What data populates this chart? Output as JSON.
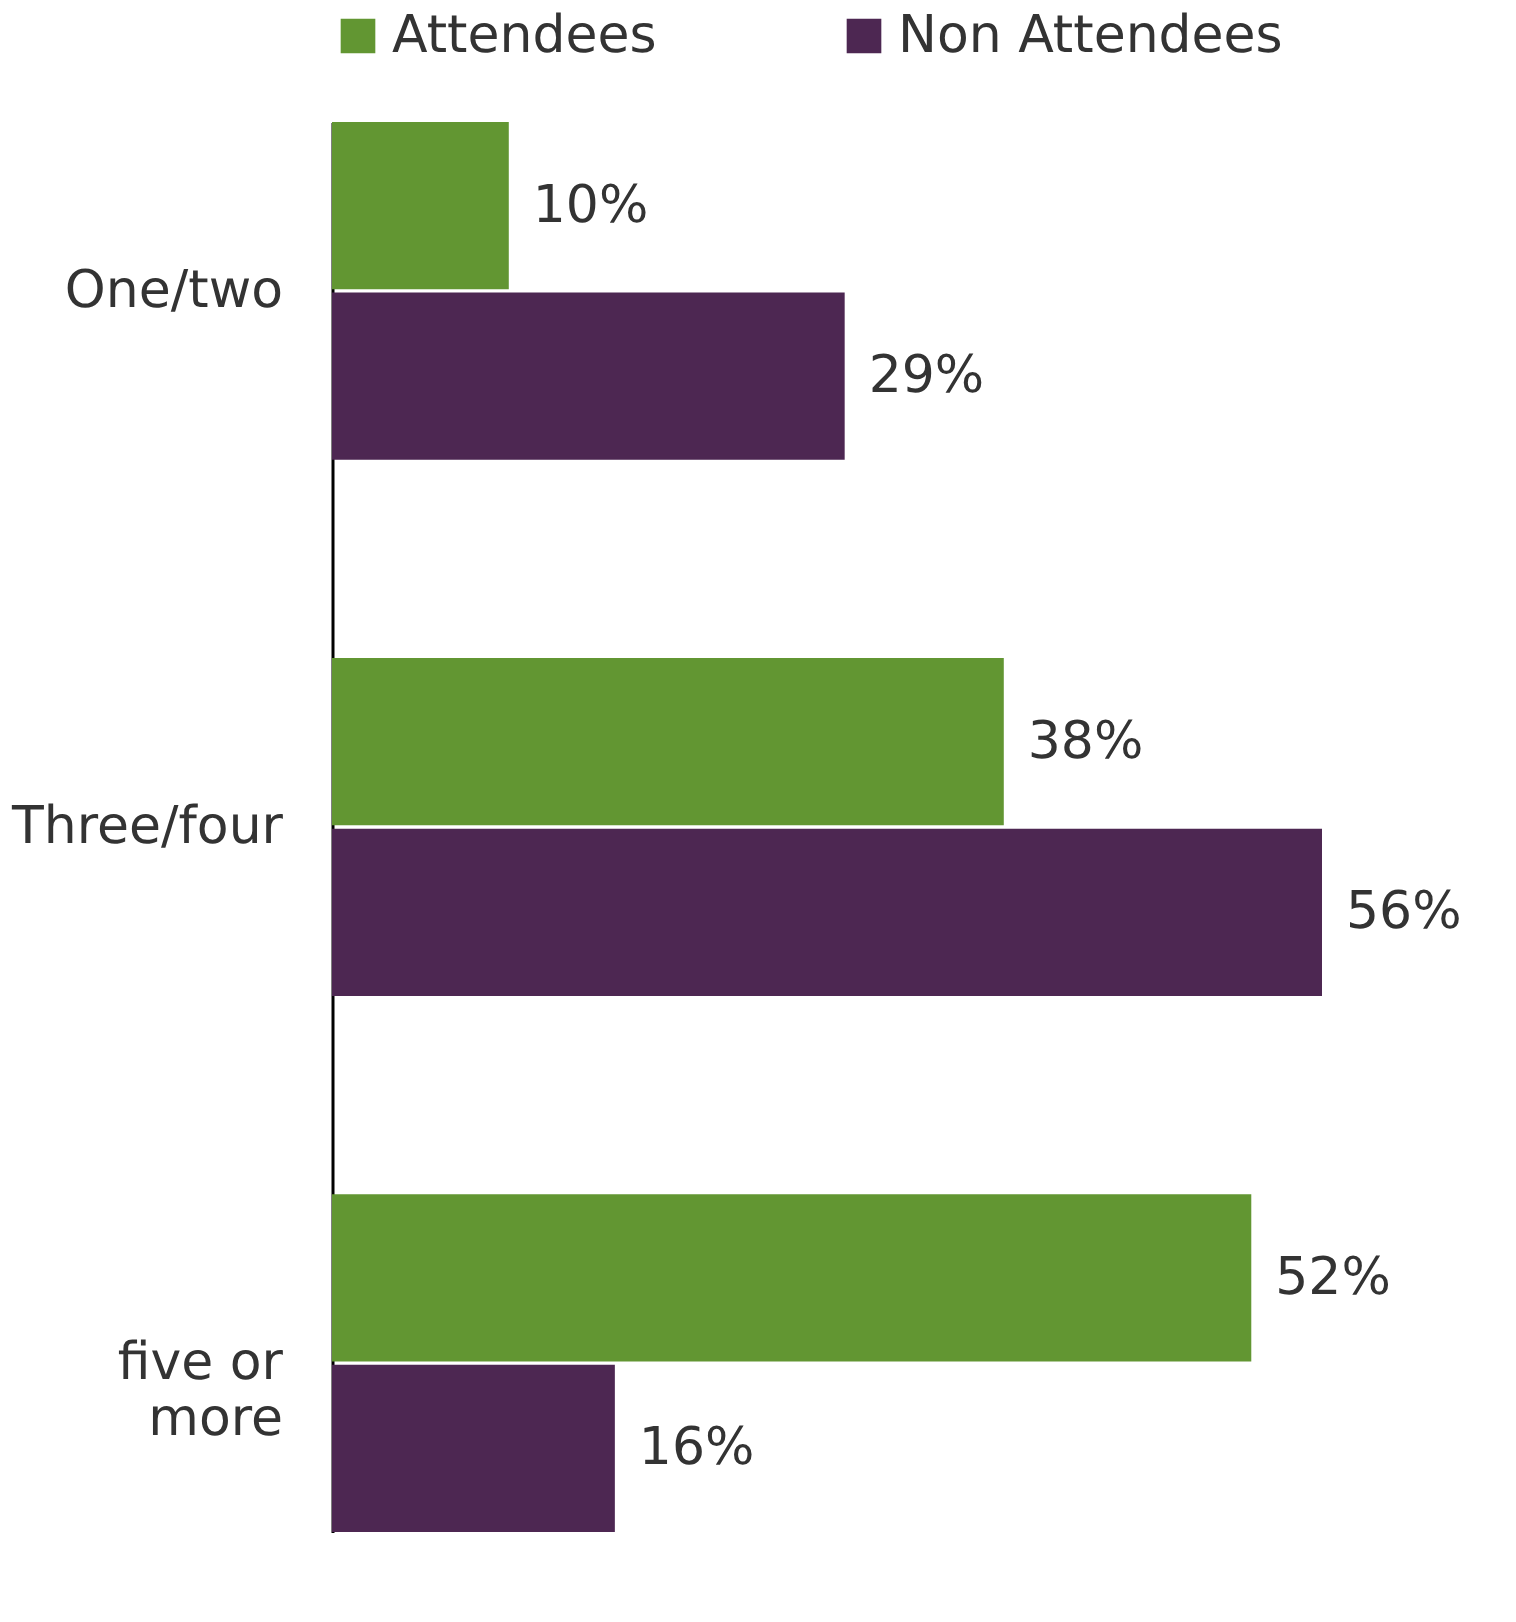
{
  "chart_data": {
    "type": "bar",
    "orientation": "horizontal",
    "categories": [
      "One/two",
      "Three/four",
      "five or more"
    ],
    "series": [
      {
        "name": "Attendees",
        "color": "#629632",
        "values": [
          10,
          38,
          52
        ],
        "value_labels": [
          "10%",
          "38%",
          "52%"
        ]
      },
      {
        "name": "Non Attendees",
        "color": "#4d2752",
        "values": [
          29,
          56,
          16
        ],
        "value_labels": [
          "29%",
          "56%",
          "16%"
        ]
      }
    ],
    "tick_labels": "y",
    "legend": "top left",
    "grid": false
  }
}
